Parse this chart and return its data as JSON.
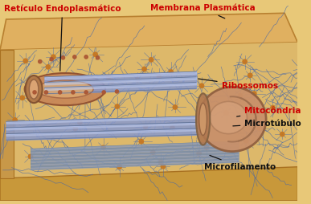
{
  "labels": {
    "reticulo": "Retículo Endoplasmático",
    "membrana": "Membrana Plasmática",
    "ribossomos": "Ribossomos",
    "mitocondria": "Mitocôndria",
    "microtubulo": "Microtúbulo",
    "microfilamento": "Microfilamento"
  },
  "label_colors": {
    "reticulo": "#cc0000",
    "membrana": "#cc0000",
    "ribossomos": "#cc0000",
    "mitocondria": "#cc0000",
    "microtubulo": "#111111",
    "microfilamento": "#111111"
  },
  "bg_color": "#e8c878",
  "top_membrane_color": "#d4a855",
  "bottom_membrane_color": "#d4a055",
  "filament_color": "#4466aa",
  "node_color": "#c87820",
  "mt_color": "#8899cc",
  "er_color": "#c89060",
  "mito_color": "#c89060",
  "figsize": [
    3.87,
    2.54
  ],
  "dpi": 100
}
